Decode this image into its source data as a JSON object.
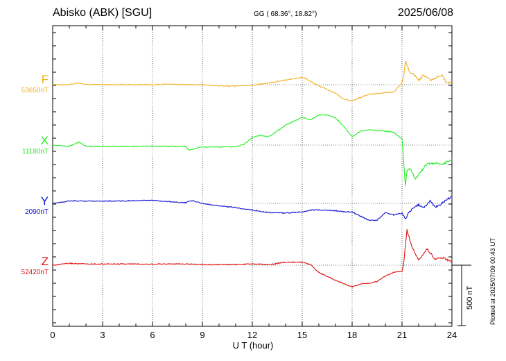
{
  "header": {
    "station": "Abisko (ABK)  [SGU]",
    "coords": "GG ( 68.36°,  18.82°)",
    "date": "2025/06/08"
  },
  "footer": {
    "plotted": "Plotted at 2025/07/09 00:43 UT",
    "scale": "500 nT"
  },
  "colors": {
    "F": "#f0b020",
    "X": "#22ee22",
    "Y": "#1010d0",
    "Z": "#e01010"
  },
  "chart_data": {
    "type": "line",
    "xlabel": "U T (hour)",
    "xlim": [
      0,
      24
    ],
    "xticks": [
      "0",
      "3",
      "6",
      "9",
      "12",
      "15",
      "18",
      "21",
      "24"
    ],
    "scale_bar_nT": 500,
    "series": [
      {
        "name": "F",
        "baseline_label": "53650nT",
        "color": "#f0b020",
        "points": [
          [
            0,
            0
          ],
          [
            1,
            0
          ],
          [
            1.6,
            -15
          ],
          [
            2,
            0
          ],
          [
            4,
            0
          ],
          [
            6,
            0
          ],
          [
            7,
            -5
          ],
          [
            8,
            0
          ],
          [
            9,
            0
          ],
          [
            10,
            10
          ],
          [
            11,
            10
          ],
          [
            12,
            5
          ],
          [
            13,
            -15
          ],
          [
            14,
            -40
          ],
          [
            15,
            -60
          ],
          [
            15.3,
            -45
          ],
          [
            16,
            10
          ],
          [
            17,
            70
          ],
          [
            17.5,
            120
          ],
          [
            18,
            135
          ],
          [
            18.5,
            105
          ],
          [
            19,
            80
          ],
          [
            20,
            65
          ],
          [
            20.5,
            60
          ],
          [
            21,
            -15
          ],
          [
            21.1,
            -70
          ],
          [
            21.2,
            -200
          ],
          [
            21.5,
            -95
          ],
          [
            21.8,
            -75
          ],
          [
            22,
            -35
          ],
          [
            22.3,
            -80
          ],
          [
            22.7,
            -35
          ],
          [
            23,
            -55
          ],
          [
            23.4,
            -80
          ],
          [
            23.7,
            -10
          ],
          [
            24,
            -25
          ]
        ]
      },
      {
        "name": "X",
        "baseline_label": "11180nT",
        "color": "#22ee22",
        "points": [
          [
            0,
            0
          ],
          [
            1,
            10
          ],
          [
            1.6,
            -25
          ],
          [
            2,
            10
          ],
          [
            4,
            10
          ],
          [
            6,
            10
          ],
          [
            8,
            10
          ],
          [
            8.2,
            40
          ],
          [
            9,
            15
          ],
          [
            10,
            15
          ],
          [
            11,
            15
          ],
          [
            11.5,
            -5
          ],
          [
            12,
            -65
          ],
          [
            12.5,
            -80
          ],
          [
            13,
            -70
          ],
          [
            14,
            -165
          ],
          [
            15,
            -230
          ],
          [
            15.5,
            -210
          ],
          [
            16,
            -250
          ],
          [
            16.5,
            -250
          ],
          [
            17,
            -225
          ],
          [
            17.5,
            -155
          ],
          [
            18,
            -70
          ],
          [
            18.5,
            -115
          ],
          [
            19,
            -125
          ],
          [
            20,
            -115
          ],
          [
            20.5,
            -105
          ],
          [
            21,
            -50
          ],
          [
            21.2,
            330
          ],
          [
            21.3,
            210
          ],
          [
            21.5,
            190
          ],
          [
            21.8,
            280
          ],
          [
            22,
            245
          ],
          [
            22.5,
            155
          ],
          [
            23,
            150
          ],
          [
            23.5,
            155
          ],
          [
            24,
            115
          ]
        ]
      },
      {
        "name": "Y",
        "baseline_label": "2090nT",
        "color": "#1010d0",
        "points": [
          [
            0,
            0
          ],
          [
            1,
            -20
          ],
          [
            2,
            -20
          ],
          [
            4,
            -20
          ],
          [
            6,
            -25
          ],
          [
            8,
            -5
          ],
          [
            8.3,
            -25
          ],
          [
            9,
            0
          ],
          [
            10,
            20
          ],
          [
            11,
            35
          ],
          [
            12,
            55
          ],
          [
            13,
            75
          ],
          [
            14,
            80
          ],
          [
            15,
            70
          ],
          [
            15.5,
            55
          ],
          [
            16,
            55
          ],
          [
            17,
            60
          ],
          [
            17.5,
            70
          ],
          [
            18,
            70
          ],
          [
            18.5,
            105
          ],
          [
            19,
            140
          ],
          [
            19.5,
            140
          ],
          [
            20,
            75
          ],
          [
            20.5,
            95
          ],
          [
            21,
            80
          ],
          [
            21.2,
            125
          ],
          [
            21.5,
            60
          ],
          [
            22,
            10
          ],
          [
            22.3,
            40
          ],
          [
            22.7,
            -25
          ],
          [
            23,
            35
          ],
          [
            23.5,
            -10
          ],
          [
            24,
            -60
          ]
        ]
      },
      {
        "name": "Z",
        "baseline_label": "52420nT",
        "color": "#e01010",
        "points": [
          [
            0,
            0
          ],
          [
            1,
            -15
          ],
          [
            2,
            -10
          ],
          [
            4,
            -10
          ],
          [
            6,
            -10
          ],
          [
            8,
            -10
          ],
          [
            9,
            -5
          ],
          [
            10,
            -5
          ],
          [
            11,
            -5
          ],
          [
            12,
            -10
          ],
          [
            13,
            -5
          ],
          [
            14,
            -25
          ],
          [
            15,
            -25
          ],
          [
            15.5,
            -5
          ],
          [
            16,
            60
          ],
          [
            17,
            125
          ],
          [
            18,
            180
          ],
          [
            18.5,
            155
          ],
          [
            19,
            150
          ],
          [
            19.5,
            135
          ],
          [
            20,
            90
          ],
          [
            20.5,
            60
          ],
          [
            21,
            50
          ],
          [
            21.1,
            -20
          ],
          [
            21.3,
            -290
          ],
          [
            21.6,
            -150
          ],
          [
            22,
            -40
          ],
          [
            22.5,
            -135
          ],
          [
            23,
            -50
          ],
          [
            23.5,
            -60
          ],
          [
            24,
            -25
          ]
        ]
      }
    ]
  }
}
